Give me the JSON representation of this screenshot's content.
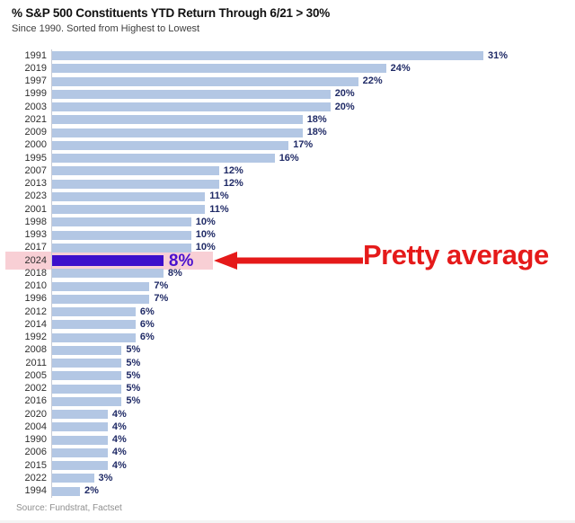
{
  "header": {
    "title": "% S&P 500 Constituents YTD Return Through 6/21 > 30%",
    "subtitle": "Since 1990. Sorted from Highest to Lowest"
  },
  "chart_data": {
    "type": "bar",
    "orientation": "horizontal",
    "title": "% S&P 500 Constituents YTD Return Through 6/21 > 30%",
    "subtitle": "Since 1990. Sorted from Highest to Lowest",
    "categories": [
      "1991",
      "2019",
      "1997",
      "1999",
      "2003",
      "2021",
      "2009",
      "2000",
      "1995",
      "2007",
      "2013",
      "2023",
      "2001",
      "1998",
      "1993",
      "2017",
      "2024",
      "2018",
      "2010",
      "1996",
      "2012",
      "2014",
      "1992",
      "2008",
      "2011",
      "2005",
      "2002",
      "2016",
      "2020",
      "2004",
      "1990",
      "2006",
      "2015",
      "2022",
      "1994"
    ],
    "values": [
      31,
      24,
      22,
      20,
      20,
      18,
      18,
      17,
      16,
      12,
      12,
      11,
      11,
      10,
      10,
      10,
      8,
      8,
      7,
      7,
      6,
      6,
      6,
      5,
      5,
      5,
      5,
      5,
      4,
      4,
      4,
      4,
      4,
      3,
      2
    ],
    "value_suffix": "%",
    "xlim": [
      0,
      31
    ],
    "grid": false,
    "legend": "none",
    "bar_color": "#b3c7e4",
    "value_label_color": "#1f2a66",
    "year_label_color": "#2f2f2f",
    "axis_color": "#c6cbd6",
    "highlight": {
      "year": "2024",
      "value": 8,
      "bar_color": "#3c0fcb",
      "band_color": "#f8cfd5",
      "label_color": "#4a11ce"
    }
  },
  "annotation": {
    "text": "Pretty average",
    "color": "#e51a1a"
  },
  "source": {
    "text": "Source: Fundstrat, Factset"
  }
}
